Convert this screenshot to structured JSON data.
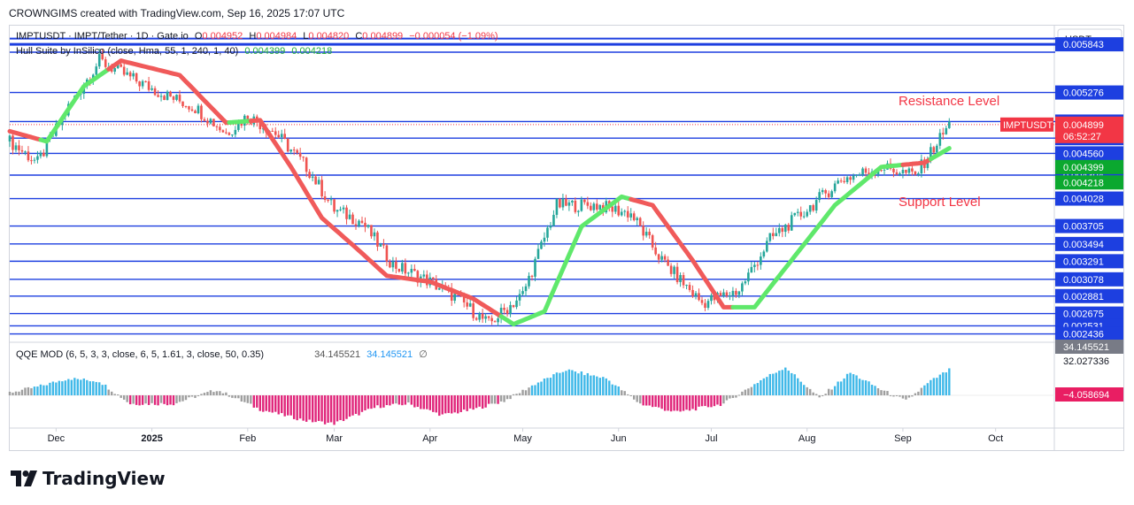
{
  "header": {
    "text": "CROWNGIMS created with TradingView.com, Sep 16, 2025 17:07 UTC"
  },
  "legend": {
    "symbol": "IMPTUSDT · IMPT/Tether · 1D · Gate.io",
    "o_label": "O",
    "o_value": "0.004952",
    "h_label": "H",
    "h_value": "0.004984",
    "l_label": "L",
    "l_value": "0.004820",
    "c_label": "C",
    "c_value": "0.004899",
    "change": "−0.000054 (−1.09%)",
    "indicator": "Hull Suite by InSilico (close, Hma, 55, 1, 240, 1, 40)",
    "ind_v1": "0.004399",
    "ind_v2": "0.004218"
  },
  "qqe_legend": {
    "name": "QQE MOD (6, 5, 3, 3, close, 6, 5, 1.61, 3, close, 50, 0.35)",
    "v1": "34.145521",
    "v2": "34.145521",
    "v3": "∅"
  },
  "annotations": {
    "resistance": "Resistance Level",
    "support": "Support Level"
  },
  "axis": {
    "currency": "USDT",
    "levels": [
      "0.005843",
      "0.005276",
      "0.004934",
      "0.004739",
      "0.004560",
      "0.004304",
      "0.004028",
      "0.003705",
      "0.003494",
      "0.003291",
      "0.003078",
      "0.002881",
      "0.002675",
      "0.002531",
      "0.002436"
    ],
    "price_tag": "0.004899",
    "symbol_tag": "IMPTUSDT",
    "countdown": "06:52:27",
    "hull_tag_1": "0.004399",
    "hull_tag_2": "0.004218",
    "qqe_tag_1": "34.145521",
    "qqe_tag_2": "32.027336",
    "qqe_tag_3": "−4.058694",
    "months": [
      "Dec",
      "2025",
      "Feb",
      "Mar",
      "Apr",
      "May",
      "Jun",
      "Jul",
      "Aug",
      "Sep",
      "Oct"
    ]
  },
  "colors": {
    "hull_up": "#5fe86b",
    "hull_down": "#f05a5a",
    "level_line": "#1d3fe0",
    "bull": "#26a69a",
    "bear": "#ef5350",
    "qqe_blue": "#3fb8e8",
    "qqe_pink": "#e0257a",
    "qqe_gray": "#9e9e9e",
    "tag_red": "#f23645"
  },
  "chart_data": {
    "type": "candlestick",
    "series_name": "IMPTUSDT",
    "ylim": [
      0.0024,
      0.006
    ],
    "x_range": [
      "2024-11-16",
      "2025-10-20"
    ],
    "price_anchors": [
      [
        "2024-11-16",
        0.0047
      ],
      [
        "2024-11-25",
        0.00445
      ],
      [
        "2024-12-05",
        0.0051
      ],
      [
        "2024-12-15",
        0.00565
      ],
      [
        "2024-12-25",
        0.00545
      ],
      [
        "2025-01-05",
        0.00525
      ],
      [
        "2025-01-15",
        0.0051
      ],
      [
        "2025-01-25",
        0.0048
      ],
      [
        "2025-02-01",
        0.005
      ],
      [
        "2025-02-10",
        0.0048
      ],
      [
        "2025-02-20",
        0.0044
      ],
      [
        "2025-03-01",
        0.0039
      ],
      [
        "2025-03-10",
        0.00375
      ],
      [
        "2025-03-20",
        0.00325
      ],
      [
        "2025-04-01",
        0.00305
      ],
      [
        "2025-04-10",
        0.00285
      ],
      [
        "2025-04-20",
        0.00255
      ],
      [
        "2025-05-01",
        0.0029
      ],
      [
        "2025-05-12",
        0.00395
      ],
      [
        "2025-05-25",
        0.00395
      ],
      [
        "2025-06-05",
        0.00385
      ],
      [
        "2025-06-15",
        0.0033
      ],
      [
        "2025-06-28",
        0.0028
      ],
      [
        "2025-07-10",
        0.00295
      ],
      [
        "2025-07-20",
        0.00355
      ],
      [
        "2025-08-01",
        0.0039
      ],
      [
        "2025-08-12",
        0.00425
      ],
      [
        "2025-08-25",
        0.0044
      ],
      [
        "2025-09-05",
        0.0043
      ],
      [
        "2025-09-16",
        0.0049
      ]
    ],
    "hull_anchors": [
      [
        "2024-11-16",
        0.00482
      ],
      [
        "2024-11-28",
        0.0047
      ],
      [
        "2024-12-10",
        0.00535
      ],
      [
        "2024-12-22",
        0.00565
      ],
      [
        "2025-01-10",
        0.00548
      ],
      [
        "2025-01-25",
        0.00492
      ],
      [
        "2025-02-05",
        0.00495
      ],
      [
        "2025-02-15",
        0.0044
      ],
      [
        "2025-02-25",
        0.0038
      ],
      [
        "2025-03-08",
        0.00345
      ],
      [
        "2025-03-18",
        0.00312
      ],
      [
        "2025-04-01",
        0.00305
      ],
      [
        "2025-04-15",
        0.00285
      ],
      [
        "2025-04-28",
        0.00255
      ],
      [
        "2025-05-08",
        0.0027
      ],
      [
        "2025-05-20",
        0.0037
      ],
      [
        "2025-06-02",
        0.00405
      ],
      [
        "2025-06-12",
        0.00395
      ],
      [
        "2025-06-25",
        0.0033
      ],
      [
        "2025-07-05",
        0.00275
      ],
      [
        "2025-07-15",
        0.00275
      ],
      [
        "2025-07-28",
        0.00335
      ],
      [
        "2025-08-10",
        0.00395
      ],
      [
        "2025-08-25",
        0.0044
      ],
      [
        "2025-09-08",
        0.00445
      ],
      [
        "2025-09-16",
        0.00462
      ]
    ],
    "hull_trend": [
      [
        "2024-11-16",
        "down"
      ],
      [
        "2024-11-26",
        "up"
      ],
      [
        "2024-12-18",
        "down"
      ],
      [
        "2025-01-26",
        "up"
      ],
      [
        "2025-02-02",
        "down"
      ],
      [
        "2025-04-24",
        "up"
      ],
      [
        "2025-06-05",
        "down"
      ],
      [
        "2025-07-08",
        "up"
      ],
      [
        "2025-09-01",
        "down"
      ],
      [
        "2025-09-10",
        "up"
      ]
    ],
    "qqe": {
      "ylim": [
        -14,
        12
      ],
      "anchors": [
        [
          "2024-11-16",
          1
        ],
        [
          "2024-11-25",
          3
        ],
        [
          "2024-12-05",
          6
        ],
        [
          "2024-12-15",
          5
        ],
        [
          "2024-12-25",
          -3
        ],
        [
          "2025-01-08",
          -3
        ],
        [
          "2025-01-22",
          2
        ],
        [
          "2025-02-05",
          -5
        ],
        [
          "2025-02-20",
          -9
        ],
        [
          "2025-03-01",
          -10
        ],
        [
          "2025-03-15",
          -4
        ],
        [
          "2025-03-25",
          -3
        ],
        [
          "2025-04-05",
          -7
        ],
        [
          "2025-04-15",
          -5
        ],
        [
          "2025-04-25",
          -2
        ],
        [
          "2025-05-05",
          4
        ],
        [
          "2025-05-15",
          9
        ],
        [
          "2025-05-28",
          6
        ],
        [
          "2025-06-08",
          -3
        ],
        [
          "2025-06-20",
          -6
        ],
        [
          "2025-07-05",
          -3
        ],
        [
          "2025-07-18",
          6
        ],
        [
          "2025-07-25",
          10
        ],
        [
          "2025-08-05",
          -1
        ],
        [
          "2025-08-15",
          8
        ],
        [
          "2025-08-25",
          2
        ],
        [
          "2025-09-02",
          -2
        ],
        [
          "2025-09-10",
          5
        ],
        [
          "2025-09-16",
          9
        ]
      ]
    }
  }
}
